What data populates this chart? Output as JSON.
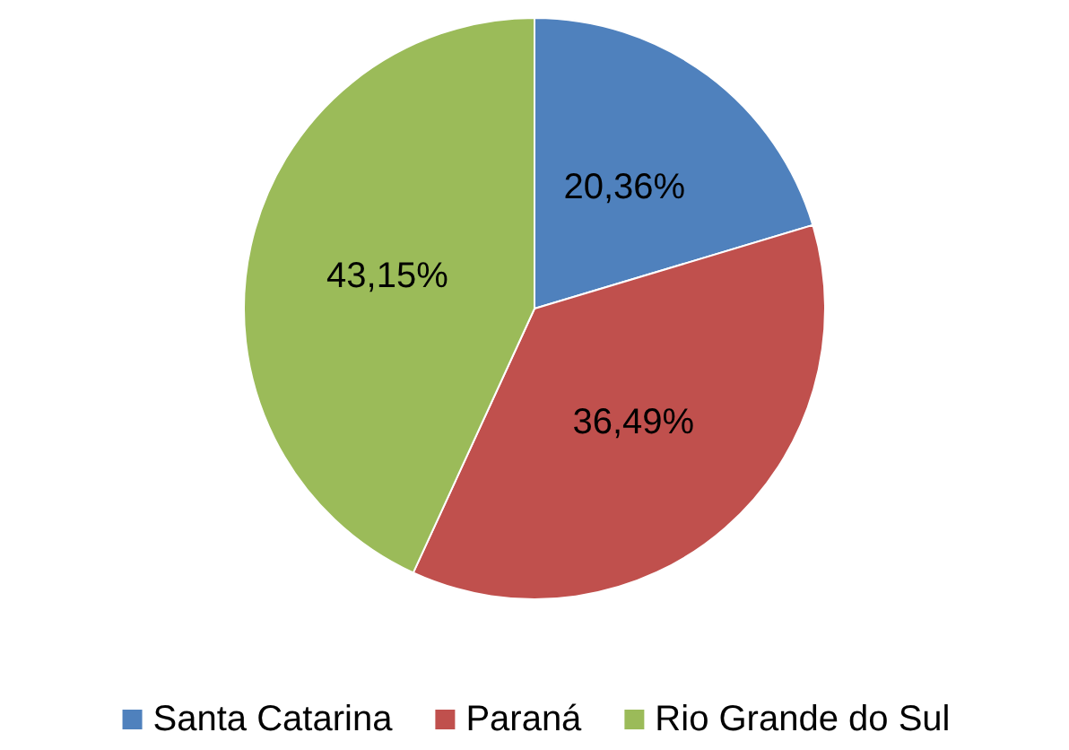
{
  "chart_data": {
    "type": "pie",
    "categories": [
      "Santa Catarina",
      "Paraná",
      "Rio Grande do Sul"
    ],
    "values": [
      20.36,
      36.49,
      43.15
    ],
    "colors": [
      "#4f81bd",
      "#c0504d",
      "#9bbb59"
    ],
    "value_labels": [
      "20,36%",
      "36,49%",
      "43,15%"
    ],
    "legend": "bottom"
  }
}
